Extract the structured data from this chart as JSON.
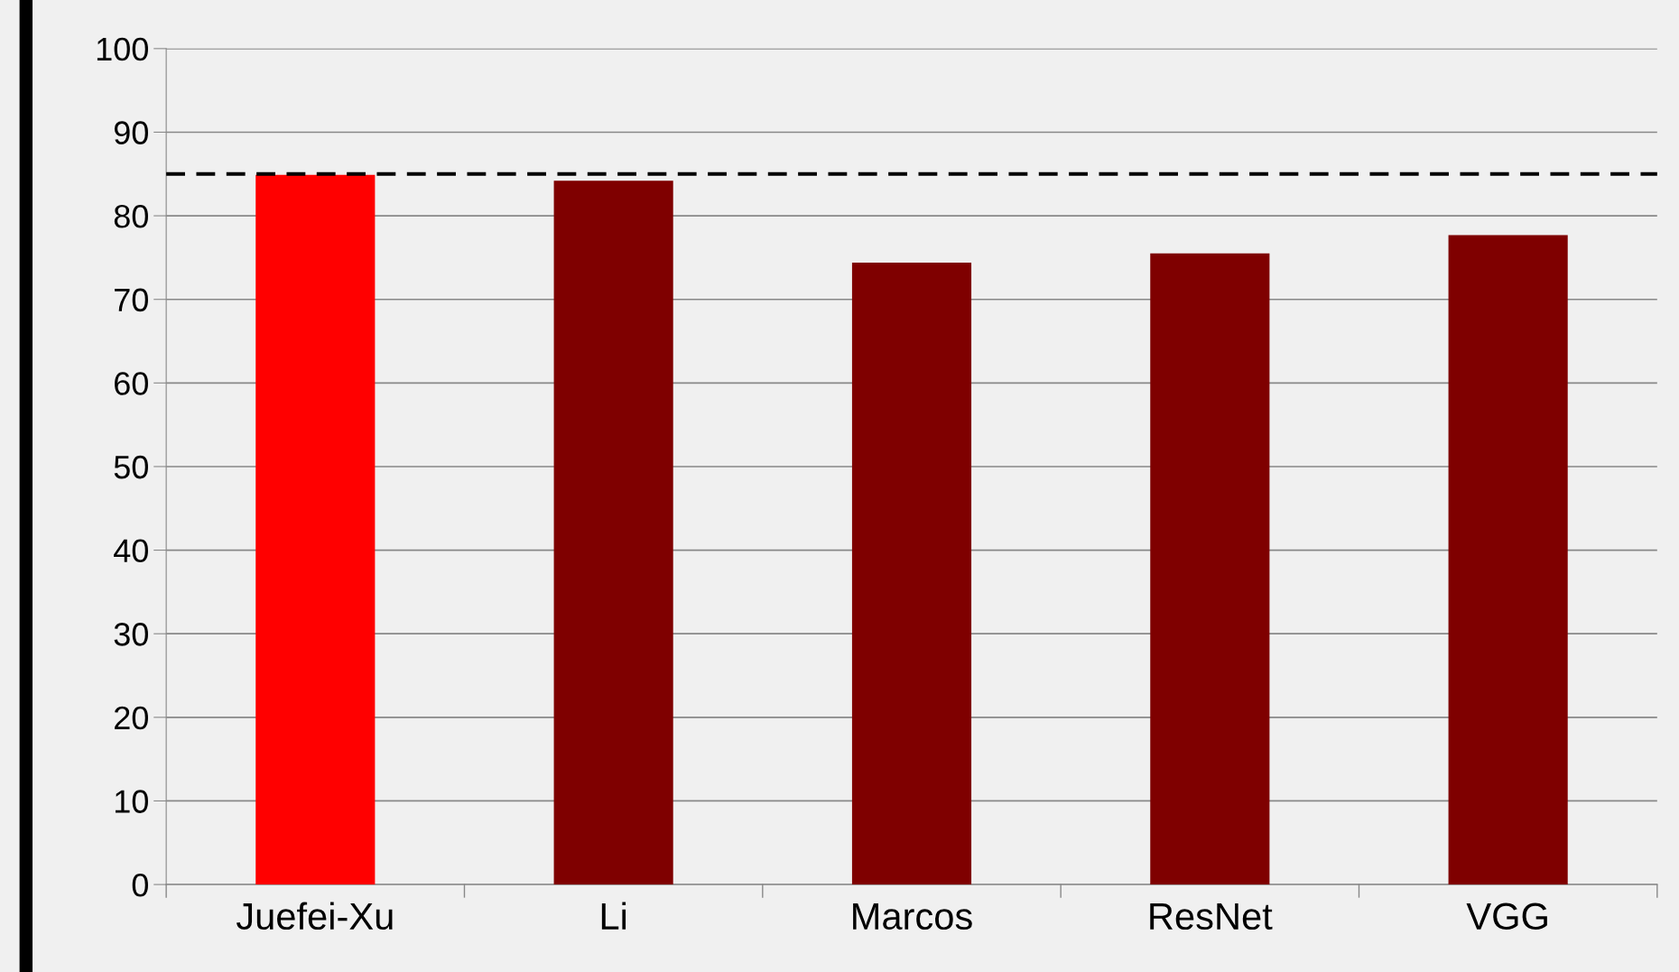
{
  "chart_data": {
    "type": "bar",
    "categories": [
      "Juefei-Xu",
      "Li",
      "Marcos",
      "ResNet",
      "VGG"
    ],
    "values": [
      84.9,
      84.2,
      74.4,
      75.5,
      77.7
    ],
    "colors": [
      "#ff0000",
      "#7f0000",
      "#7f0000",
      "#7f0000",
      "#7f0000"
    ],
    "ylim": [
      0,
      100
    ],
    "yticks": [
      0,
      10,
      20,
      30,
      40,
      50,
      60,
      70,
      80,
      90,
      100
    ],
    "grid": "y",
    "ref_lines": [
      {
        "axis": "y",
        "value": 85,
        "color": "#000000",
        "line_style": "dashed"
      }
    ]
  }
}
